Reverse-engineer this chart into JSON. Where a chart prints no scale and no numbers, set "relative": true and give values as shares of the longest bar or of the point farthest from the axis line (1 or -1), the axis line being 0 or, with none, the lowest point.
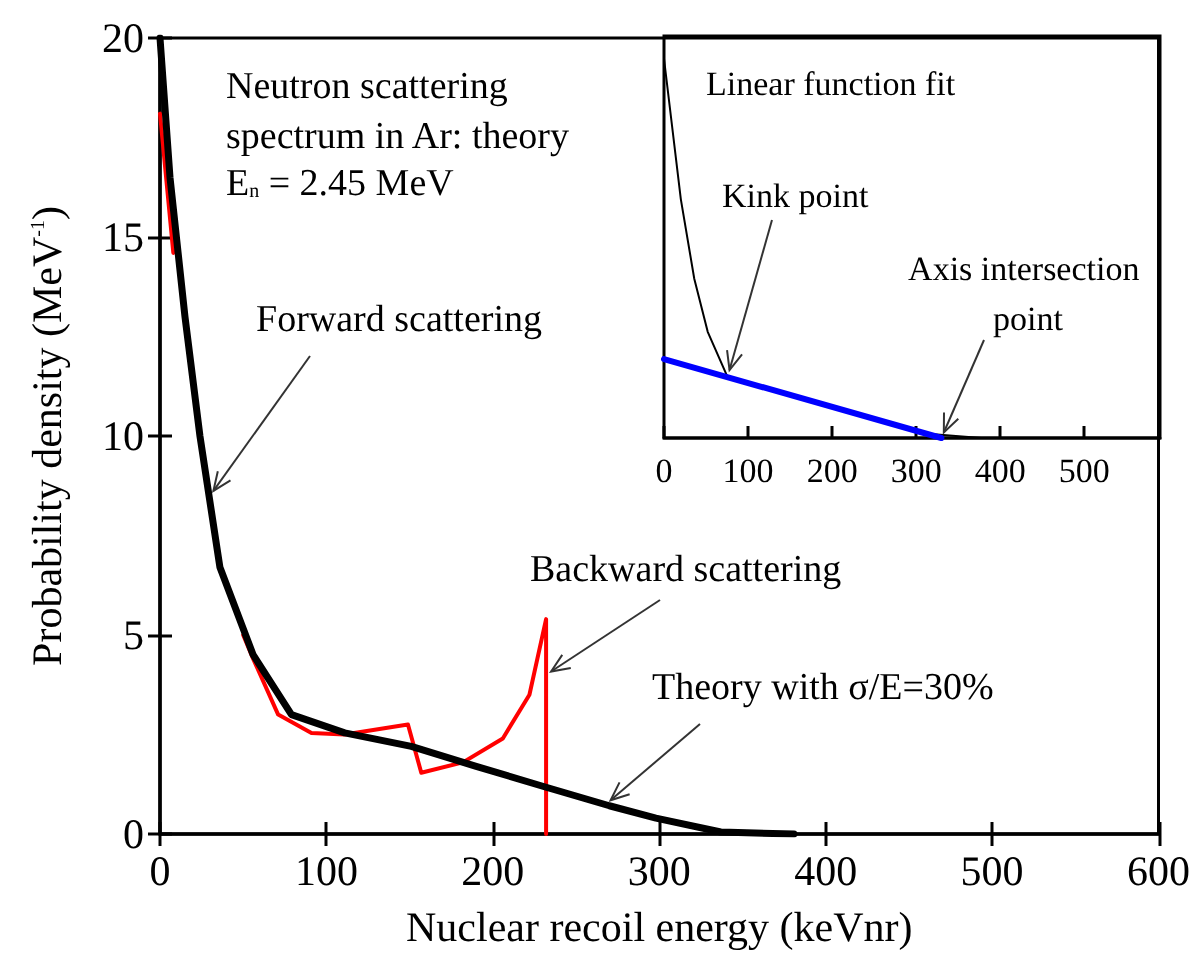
{
  "chart_data": [
    {
      "type": "line",
      "xlabel": "Nuclear recoil energy (keVnr)",
      "ylabel": "Probability density (MeV$^{-1}$)",
      "xlim": [
        0,
        600
      ],
      "xticks": [
        0,
        100,
        200,
        300,
        400,
        500,
        600
      ],
      "ylim": [
        0,
        20
      ],
      "yticks": [
        0,
        5,
        10,
        15,
        20
      ],
      "marker": "none",
      "line_style": "solid",
      "series": [
        {
          "color": "#ff0000",
          "x": [
            0,
            8,
            25,
            50,
            56,
            71,
            91,
            111,
            149,
            157,
            182,
            206,
            222,
            232,
            232
          ],
          "values": [
            18.1,
            14.6,
            null,
            5.0,
            4.4,
            3.0,
            2.54,
            2.5,
            2.75,
            1.54,
            1.8,
            2.4,
            3.5,
            5.4,
            0
          ]
        },
        {
          "color": "#000000",
          "x": [
            0,
            6,
            15,
            24,
            36,
            56,
            79,
            111,
            151,
            190,
            230,
            270,
            298,
            337,
            381
          ],
          "values": [
            20,
            16.5,
            13,
            10,
            6.7,
            4.5,
            3.0,
            2.54,
            2.2,
            1.7,
            1.2,
            0.71,
            0.4,
            0.05,
            0
          ]
        }
      ],
      "annotations": [
        "Neutron scattering spectrum in Ar: theory",
        "E$_{n}$ = 2.45 MeV",
        {
          "text": "Forward scattering",
          "x": 30,
          "y": 8.5
        },
        {
          "text": "Backward scattering",
          "x": 232,
          "y": 4
        },
        {
          "text": "Theory with σ/E=30%",
          "x": 268,
          "y": 0.75
        }
      ]
    },
    {
      "type": "line",
      "relative": true,
      "xlim": [
        0,
        590
      ],
      "xticks": [
        0,
        100,
        200,
        300,
        400,
        500
      ],
      "marker": "none",
      "line_style": "solid",
      "series": [
        {
          "color": "#000000",
          "x": [
            0,
            20,
            36,
            52,
            75,
            150,
            250,
            321,
            377
          ],
          "values": [
            1,
            0.63,
            0.42,
            0.28,
            0.164,
            null,
            null,
            0.01,
            0
          ]
        },
        {
          "color": "#0000ff",
          "x": [
            0,
            330
          ],
          "values": [
            0.208,
            0
          ]
        }
      ],
      "annotations": [
        "Linear function fit",
        {
          "text": "Kink point",
          "x": 76,
          "y": 0.164
        },
        {
          "text": "Axis intersection point",
          "x": 330,
          "y": 0
        }
      ]
    }
  ]
}
